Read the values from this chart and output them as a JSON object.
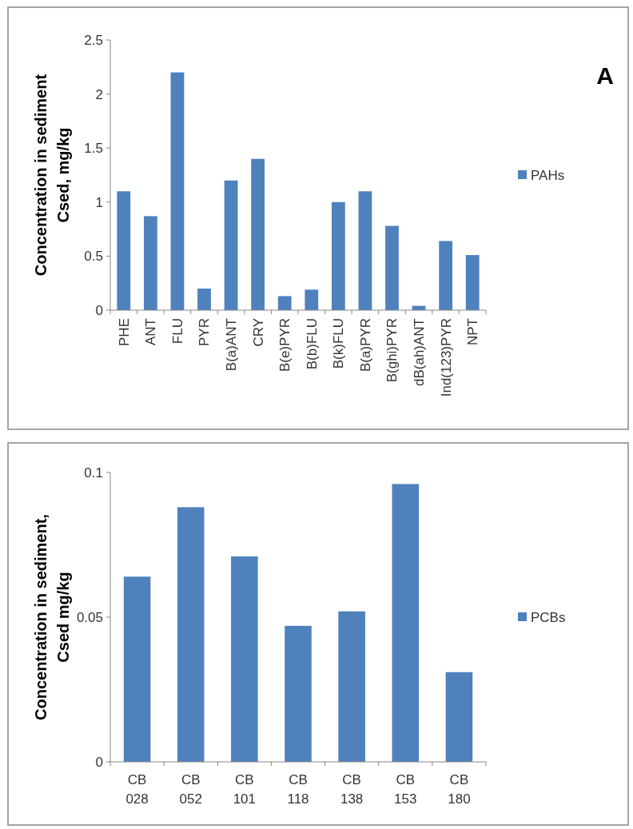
{
  "chart_data": [
    {
      "type": "bar",
      "ylabel": "Concentration in sediment\nCsed, mg/kg",
      "categories": [
        "PHE",
        "ANT",
        "FLU",
        "PYR",
        "B(a)ANT",
        "CRY",
        "B(e)PYR",
        "B(b)FLU",
        "B(k)FLU",
        "B(a)PYR",
        "B(ghi)PYR",
        "dB(ah)ANT",
        "Ind(123)PYR",
        "NPT"
      ],
      "series": [
        {
          "name": "PAHs",
          "color": "#4f81bd",
          "values": [
            1.1,
            0.87,
            2.2,
            0.2,
            1.2,
            1.4,
            0.13,
            0.19,
            1.0,
            1.1,
            0.78,
            0.04,
            0.64,
            0.51
          ]
        }
      ],
      "ylim": [
        0,
        2.5
      ],
      "yticks": [
        0,
        0.5,
        1,
        1.5,
        2,
        2.5
      ],
      "legend": "right",
      "grid": false,
      "annotations": [
        "A"
      ]
    },
    {
      "type": "bar",
      "ylabel": "Concentration in sediment,\nCsed mg/kg",
      "categories": [
        "CB 028",
        "CB 052",
        "CB 101",
        "CB 118",
        "CB 138",
        "CB 153",
        "CB 180"
      ],
      "series": [
        {
          "name": "PCBs",
          "color": "#4f81bd",
          "values": [
            0.064,
            0.088,
            0.071,
            0.047,
            0.052,
            0.096,
            0.031
          ]
        }
      ],
      "ylim": [
        0,
        0.1
      ],
      "yticks": [
        0,
        0.05,
        0.1
      ],
      "legend": "right",
      "grid": false
    }
  ]
}
